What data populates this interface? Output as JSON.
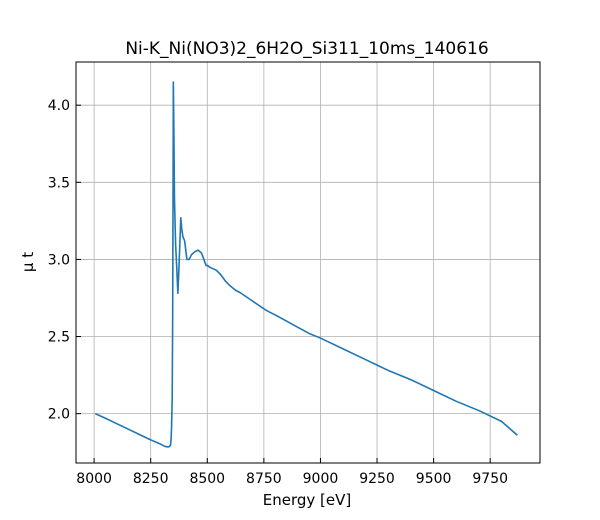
{
  "chart_data": {
    "type": "line",
    "title": "Ni-K_Ni(NO3)2_6H2O_Si311_10ms_140616",
    "xlabel": "Energy [eV]",
    "ylabel": "μ t",
    "xlim": [
      7920,
      9970
    ],
    "ylim": [
      1.68,
      4.28
    ],
    "xticks": [
      8000,
      8250,
      8500,
      8750,
      9000,
      9250,
      9500,
      9750
    ],
    "yticks": [
      2.0,
      2.5,
      3.0,
      3.5,
      4.0
    ],
    "xtick_labels": [
      "8000",
      "8250",
      "8500",
      "8750",
      "9000",
      "9250",
      "9500",
      "9750"
    ],
    "ytick_labels": [
      "2.0",
      "2.5",
      "3.0",
      "3.5",
      "4.0"
    ],
    "grid": true,
    "series_color": "#1f77b4",
    "series": [
      {
        "x": [
          8005,
          8050,
          8100,
          8150,
          8200,
          8250,
          8290,
          8310,
          8320,
          8330,
          8335,
          8338,
          8340,
          8342,
          8345,
          8347,
          8349,
          8350,
          8352,
          8355,
          8360,
          8365,
          8370,
          8375,
          8380,
          8383,
          8387,
          8392,
          8400,
          8410,
          8420,
          8430,
          8445,
          8460,
          8475,
          8485,
          8495,
          8502,
          8510,
          8525,
          8540,
          8560,
          8580,
          8600,
          8625,
          8650,
          8690,
          8720,
          8760,
          8800,
          8850,
          8900,
          8950,
          9000,
          9100,
          9200,
          9300,
          9400,
          9500,
          9600,
          9700,
          9800,
          9870
        ],
        "y": [
          2.0,
          1.97,
          1.935,
          1.9,
          1.865,
          1.83,
          1.805,
          1.79,
          1.785,
          1.785,
          1.79,
          1.8,
          1.83,
          1.9,
          2.1,
          2.6,
          3.5,
          4.15,
          3.9,
          3.4,
          3.1,
          2.95,
          2.78,
          2.95,
          3.15,
          3.27,
          3.2,
          3.15,
          3.12,
          3.0,
          3.0,
          3.03,
          3.05,
          3.06,
          3.04,
          3.0,
          2.96,
          2.96,
          2.95,
          2.94,
          2.93,
          2.9,
          2.86,
          2.83,
          2.8,
          2.78,
          2.74,
          2.71,
          2.67,
          2.64,
          2.6,
          2.56,
          2.52,
          2.49,
          2.42,
          2.35,
          2.28,
          2.22,
          2.15,
          2.08,
          2.02,
          1.95,
          1.86
        ]
      }
    ]
  }
}
